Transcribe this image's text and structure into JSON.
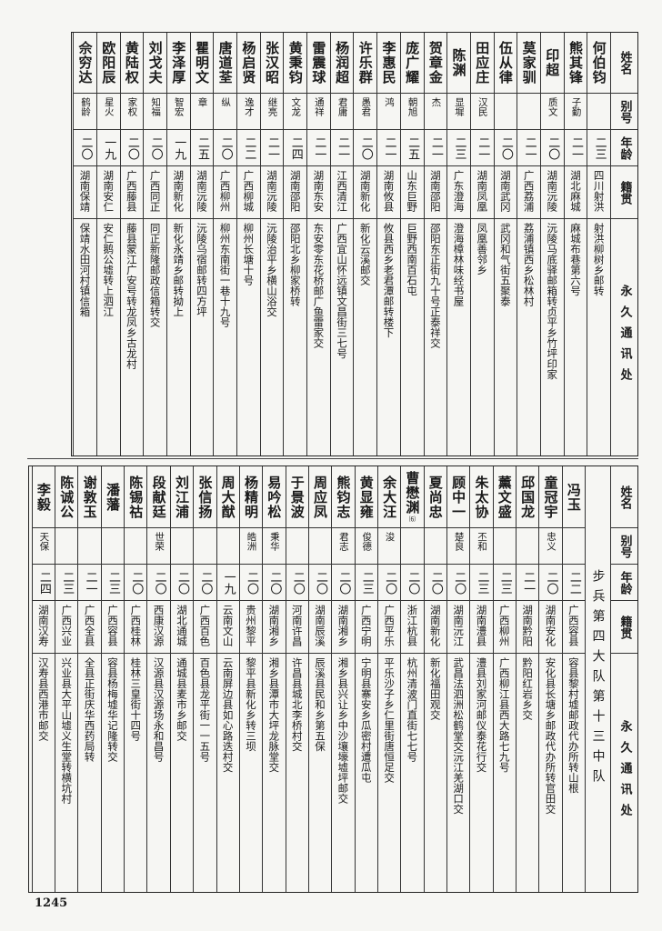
{
  "headers": {
    "name": "姓名",
    "alias": "别号",
    "age": "年龄",
    "native": "籍贯",
    "address": "永久通讯处"
  },
  "upper": {
    "rows": [
      {
        "name": "何伯钧",
        "alias": "",
        "age": "二三",
        "native": "四川射洪",
        "address": "射洪柳树乡邮转"
      },
      {
        "name": "熊其锋",
        "alias": "子勤",
        "age": "二一",
        "native": "湖北麻城",
        "address": "麻城布巷第六号"
      },
      {
        "name": "印超",
        "alias": "质文",
        "age": "二〇",
        "native": "湖南沅陵",
        "address": "沅陵马底驿邮箱转贞平乡竹坪印家"
      },
      {
        "name": "莫家驯",
        "alias": "",
        "age": "二一",
        "native": "广西荔浦",
        "address": "荔浦镇西乡松林村"
      },
      {
        "name": "伍从律",
        "alias": "",
        "age": "二〇",
        "native": "湖南武冈",
        "address": "武冈和气街五聚泰"
      },
      {
        "name": "田应庄",
        "alias": "汉民",
        "age": "二一",
        "native": "湖南凤凰",
        "address": "凤凰善邻乡"
      },
      {
        "name": "陈渊",
        "alias": "显墀",
        "age": "二三",
        "native": "广东澄海",
        "address": "澄海樟林味经书屋"
      },
      {
        "name": "贺章金",
        "alias": "杰",
        "age": "二一",
        "native": "湖南邵阳",
        "address": "邵阳东正街九十号正泰祥交"
      },
      {
        "name": "庞广耀",
        "alias": "朝旭",
        "age": "二五",
        "native": "山东巨野",
        "address": "巨野西南百石屯"
      },
      {
        "name": "李惠民",
        "alias": "鸿",
        "age": "二一",
        "native": "湖南攸县",
        "address": "攸县西乡老君潭邮转楼下"
      },
      {
        "name": "许乐群",
        "alias": "愚君",
        "age": "二〇",
        "native": "湖南新化",
        "address": "新化云溪邮交"
      },
      {
        "name": "杨润超",
        "alias": "君庸",
        "age": "二一",
        "native": "江西清江",
        "address": "广西宜山怀远镇文昌街三七号"
      },
      {
        "name": "雷震球",
        "alias": "通祥",
        "age": "二一",
        "native": "湖南东安",
        "address": "东安零东花桥邮广鱼雷家交"
      },
      {
        "name": "黄秉钧",
        "alias": "文龙",
        "age": "二四",
        "native": "湖南邵阳",
        "address": "邵阳北乡柳家桥转"
      },
      {
        "name": "张汉昭",
        "alias": "继亮",
        "age": "二一",
        "native": "湖南沅陵",
        "address": "沅陵治平乡横山浴交"
      },
      {
        "name": "杨启贤",
        "alias": "逸才",
        "age": "二二",
        "native": "广西柳城",
        "address": "柳州长塘十号"
      },
      {
        "name": "唐道荃",
        "alias": "纵",
        "age": "二〇",
        "native": "广西柳州",
        "address": "柳州东南街一巷十九号"
      },
      {
        "name": "瞿明文",
        "alias": "章",
        "age": "二五",
        "native": "湖南沅陵",
        "address": "沅陵乌宿邮转四方坪"
      },
      {
        "name": "李泽厚",
        "alias": "智宏",
        "age": "一九",
        "native": "湖南新化",
        "address": "新化永靖乡邮转拗上"
      },
      {
        "name": "刘戈夫",
        "alias": "知福",
        "age": "二〇",
        "native": "广西同正",
        "address": "同正新隆邮政信箱转交"
      },
      {
        "name": "黄陆权",
        "alias": "家权",
        "age": "二〇",
        "native": "广西藤县",
        "address": "藤县蒙江广安号转龙凤乡古龙村"
      },
      {
        "name": "欧阳辰",
        "alias": "星火",
        "age": "一九",
        "native": "湖南安仁",
        "address": "安仁鹅公墟转上泗江"
      },
      {
        "name": "佘穷达",
        "alias": "鹤龄",
        "age": "二〇",
        "native": "湖南保靖",
        "address": "保靖水田河村镇信箱"
      }
    ]
  },
  "lower": {
    "unit": "步兵第四大队第十三中队",
    "rows": [
      {
        "name": "冯玉",
        "alias": "",
        "age": "二二",
        "native": "广西容县",
        "address": "容县黎村墟邮政代办所转山根"
      },
      {
        "name": "童冠宇",
        "alias": "忠义",
        "age": "二〇",
        "native": "湖南安化",
        "address": "安化县长塘乡邮政代办所转官田交"
      },
      {
        "name": "邱国龙",
        "alias": "",
        "age": "二一",
        "native": "湖南黔阳",
        "address": "黔阳红岩乡交"
      },
      {
        "name": "薰文盛",
        "alias": "",
        "age": "二三",
        "native": "广西柳州",
        "address": "广西柳江县西大路七九号"
      },
      {
        "name": "朱太协",
        "alias": "丕和",
        "age": "二三",
        "native": "湖南澧县",
        "address": "澧县刘家河邮仪泰花行交"
      },
      {
        "name": "顾中一",
        "alias": "楚良",
        "age": "二〇",
        "native": "湖南沅江",
        "address": "武昌法泗洲松鹤堂交沅江羌湖口交"
      },
      {
        "name": "夏尚忠",
        "alias": "",
        "age": "二〇",
        "native": "湖南新化",
        "address": "新化福田观交"
      },
      {
        "name": "曹懋渊",
        "note": "⑹",
        "alias": "",
        "age": "二〇",
        "native": "浙江杭县",
        "address": "杭州清波门直街七七号"
      },
      {
        "name": "余大汪",
        "alias": "浚",
        "age": "二〇",
        "native": "广西平乐",
        "address": "平乐沙子乡仁里街唐恒足交"
      },
      {
        "name": "黄显雍",
        "alias": "俊德",
        "age": "二三",
        "native": "广西宁明",
        "address": "宁明县寨安乡瓜密村遭瓜屯"
      },
      {
        "name": "熊钧志",
        "alias": "君志",
        "age": "二〇",
        "native": "湖南湘乡",
        "address": "湘乡县兴让乡中沙壤壕墟坪邮交"
      },
      {
        "name": "周应凤",
        "alias": "",
        "age": "二〇",
        "native": "湖南辰溪",
        "address": "辰溪县民和乡第五保"
      },
      {
        "name": "于景波",
        "alias": "",
        "age": "二〇",
        "native": "河南许昌",
        "address": "许昌县城北李桥村交"
      },
      {
        "name": "易吟松",
        "alias": "秉华",
        "age": "二〇",
        "native": "湖南湘乡",
        "address": "湘乡县潭市大坪龙脉堂交"
      },
      {
        "name": "杨精明",
        "alias": "皓洲",
        "age": "二〇",
        "native": "贵州黎平",
        "address": "黎平县新化乡转三坝"
      },
      {
        "name": "周大猷",
        "alias": "",
        "age": "一九",
        "native": "云南文山",
        "address": "云南屏边县如心路迭村交"
      },
      {
        "name": "张信扬",
        "alias": "",
        "age": "二〇",
        "native": "广西百色",
        "address": "百色县龙平街一一五号"
      },
      {
        "name": "刘江浦",
        "alias": "",
        "age": "二〇",
        "native": "湖北通城",
        "address": "通城县麦市乡邮交"
      },
      {
        "name": "段献廷",
        "alias": "世荣",
        "age": "二〇",
        "native": "西康汉源",
        "address": "汉源县汉源场永和昌号"
      },
      {
        "name": "陈锡祜",
        "alias": "",
        "age": "二〇",
        "native": "广西桂林",
        "address": "桂林三皇街十四号"
      },
      {
        "name": "潘藩",
        "alias": "",
        "age": "二三",
        "native": "广西容县",
        "address": "容县杨梅墟华记隆转交"
      },
      {
        "name": "谢敦玉",
        "alias": "",
        "age": "二一",
        "native": "广西全县",
        "address": "全县正街庆华西药局转"
      },
      {
        "name": "陈诚公",
        "alias": "",
        "age": "二三",
        "native": "广西兴业",
        "address": "兴业县大平山墟义生堂转横坑村"
      },
      {
        "name": "李毅",
        "alias": "天保",
        "age": "二四",
        "native": "湖南汉寿",
        "address": "汉寿县西港市邮交"
      }
    ]
  },
  "page_number": "1245"
}
